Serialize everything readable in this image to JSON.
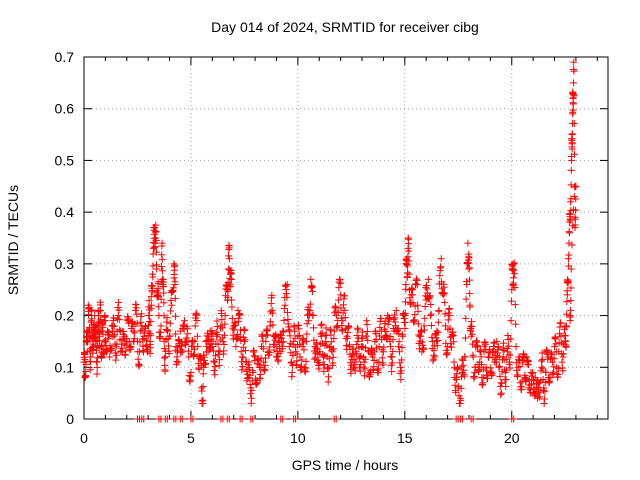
{
  "chart_data": {
    "type": "scatter",
    "title": "Day 014 of 2024, SRMTID for receiver cibg",
    "xlabel": "GPS time / hours",
    "ylabel": "SRMTID / TECUs",
    "xlim": [
      0,
      24.5
    ],
    "ylim": [
      0,
      0.7
    ],
    "xticks": [
      0,
      5,
      10,
      15,
      20
    ],
    "xtick_labels": [
      "0",
      "5",
      "10",
      "15",
      "20"
    ],
    "yticks": [
      0,
      0.1,
      0.2,
      0.3,
      0.4,
      0.5,
      0.6,
      0.7
    ],
    "ytick_labels": [
      "0",
      "0.1",
      "0.2",
      "0.3",
      "0.4",
      "0.5",
      "0.6",
      "0.7"
    ],
    "grid": true,
    "marker": "+",
    "series": [
      {
        "name": "SRMTID",
        "color": "#ff0000",
        "points": [
          [
            0.0,
            0.11
          ],
          [
            0.05,
            0.08
          ],
          [
            0.1,
            0.15
          ],
          [
            0.15,
            0.13
          ],
          [
            0.2,
            0.22
          ],
          [
            0.25,
            0.17
          ],
          [
            0.3,
            0.12
          ],
          [
            0.35,
            0.19
          ],
          [
            0.4,
            0.16
          ],
          [
            0.45,
            0.14
          ],
          [
            0.5,
            0.2
          ],
          [
            0.55,
            0.15
          ],
          [
            0.6,
            0.11
          ],
          [
            0.65,
            0.18
          ],
          [
            0.7,
            0.16
          ],
          [
            0.75,
            0.21
          ],
          [
            0.8,
            0.14
          ],
          [
            0.85,
            0.17
          ],
          [
            0.9,
            0.13
          ],
          [
            0.95,
            0.19
          ],
          [
            1.0,
            0.15
          ],
          [
            1.1,
            0.17
          ],
          [
            1.2,
            0.12
          ],
          [
            1.3,
            0.18
          ],
          [
            1.4,
            0.16
          ],
          [
            1.5,
            0.14
          ],
          [
            1.6,
            0.2
          ],
          [
            1.7,
            0.17
          ],
          [
            1.8,
            0.13
          ],
          [
            1.9,
            0.16
          ],
          [
            2.0,
            0.15
          ],
          [
            2.1,
            0.19
          ],
          [
            2.2,
            0.14
          ],
          [
            2.3,
            0.17
          ],
          [
            2.4,
            0.21
          ],
          [
            2.5,
            0.15
          ],
          [
            2.6,
            0.13
          ],
          [
            2.7,
            0.18
          ],
          [
            2.8,
            0.16
          ],
          [
            2.9,
            0.14
          ],
          [
            3.0,
            0.17
          ],
          [
            3.05,
            0.2
          ],
          [
            3.1,
            0.15
          ],
          [
            3.15,
            0.22
          ],
          [
            3.2,
            0.28
          ],
          [
            3.25,
            0.33
          ],
          [
            3.3,
            0.37
          ],
          [
            3.35,
            0.35
          ],
          [
            3.4,
            0.29
          ],
          [
            3.45,
            0.24
          ],
          [
            3.5,
            0.2
          ],
          [
            3.6,
            0.18
          ],
          [
            3.65,
            0.34
          ],
          [
            3.7,
            0.27
          ],
          [
            3.75,
            0.15
          ],
          [
            3.8,
            0.12
          ],
          [
            3.9,
            0.17
          ],
          [
            4.0,
            0.16
          ],
          [
            4.1,
            0.22
          ],
          [
            4.2,
            0.3
          ],
          [
            4.25,
            0.26
          ],
          [
            4.3,
            0.14
          ],
          [
            4.4,
            0.11
          ],
          [
            4.5,
            0.17
          ],
          [
            4.6,
            0.13
          ],
          [
            4.7,
            0.19
          ],
          [
            4.8,
            0.15
          ],
          [
            4.9,
            0.12
          ],
          [
            5.0,
            0.09
          ],
          [
            5.1,
            0.14
          ],
          [
            5.2,
            0.18
          ],
          [
            5.3,
            0.16
          ],
          [
            5.4,
            0.12
          ],
          [
            5.5,
            0.06
          ],
          [
            5.55,
            0.03
          ],
          [
            5.6,
            0.1
          ],
          [
            5.7,
            0.15
          ],
          [
            5.8,
            0.13
          ],
          [
            5.9,
            0.17
          ],
          [
            6.0,
            0.14
          ],
          [
            6.1,
            0.11
          ],
          [
            6.2,
            0.16
          ],
          [
            6.3,
            0.13
          ],
          [
            6.4,
            0.18
          ],
          [
            6.5,
            0.15
          ],
          [
            6.6,
            0.2
          ],
          [
            6.7,
            0.25
          ],
          [
            6.75,
            0.29
          ],
          [
            6.8,
            0.31
          ],
          [
            6.85,
            0.28
          ],
          [
            6.9,
            0.23
          ],
          [
            7.0,
            0.18
          ],
          [
            7.1,
            0.14
          ],
          [
            7.2,
            0.21
          ],
          [
            7.3,
            0.16
          ],
          [
            7.4,
            0.12
          ],
          [
            7.5,
            0.15
          ],
          [
            7.6,
            0.11
          ],
          [
            7.7,
            0.08
          ],
          [
            7.8,
            0.06
          ],
          [
            7.9,
            0.09
          ],
          [
            8.0,
            0.12
          ],
          [
            8.1,
            0.07
          ],
          [
            8.2,
            0.1
          ],
          [
            8.3,
            0.14
          ],
          [
            8.4,
            0.11
          ],
          [
            8.5,
            0.15
          ],
          [
            8.6,
            0.13
          ],
          [
            8.7,
            0.18
          ],
          [
            8.8,
            0.21
          ],
          [
            8.9,
            0.16
          ],
          [
            9.0,
            0.12
          ],
          [
            9.1,
            0.15
          ],
          [
            9.2,
            0.13
          ],
          [
            9.3,
            0.17
          ],
          [
            9.4,
            0.22
          ],
          [
            9.5,
            0.26
          ],
          [
            9.6,
            0.14
          ],
          [
            9.7,
            0.11
          ],
          [
            9.8,
            0.15
          ],
          [
            9.9,
            0.13
          ],
          [
            10.0,
            0.16
          ],
          [
            10.1,
            0.12
          ],
          [
            10.2,
            0.14
          ],
          [
            10.3,
            0.1
          ],
          [
            10.4,
            0.15
          ],
          [
            10.5,
            0.19
          ],
          [
            10.6,
            0.27
          ],
          [
            10.7,
            0.2
          ],
          [
            10.8,
            0.14
          ],
          [
            10.9,
            0.11
          ],
          [
            11.0,
            0.13
          ],
          [
            11.1,
            0.16
          ],
          [
            11.2,
            0.12
          ],
          [
            11.3,
            0.15
          ],
          [
            11.4,
            0.1
          ],
          [
            11.5,
            0.14
          ],
          [
            11.6,
            0.13
          ],
          [
            11.7,
            0.17
          ],
          [
            11.8,
            0.2
          ],
          [
            11.9,
            0.23
          ],
          [
            12.0,
            0.24
          ],
          [
            12.1,
            0.19
          ],
          [
            12.2,
            0.21
          ],
          [
            12.3,
            0.16
          ],
          [
            12.4,
            0.14
          ],
          [
            12.5,
            0.12
          ],
          [
            12.6,
            0.1
          ],
          [
            12.7,
            0.13
          ],
          [
            12.8,
            0.15
          ],
          [
            12.9,
            0.12
          ],
          [
            13.0,
            0.14
          ],
          [
            13.1,
            0.11
          ],
          [
            13.2,
            0.16
          ],
          [
            13.3,
            0.13
          ],
          [
            13.4,
            0.09
          ],
          [
            13.5,
            0.12
          ],
          [
            13.6,
            0.15
          ],
          [
            13.7,
            0.11
          ],
          [
            13.8,
            0.14
          ],
          [
            13.9,
            0.17
          ],
          [
            14.0,
            0.13
          ],
          [
            14.1,
            0.16
          ],
          [
            14.2,
            0.2
          ],
          [
            14.3,
            0.15
          ],
          [
            14.4,
            0.12
          ],
          [
            14.5,
            0.17
          ],
          [
            14.6,
            0.21
          ],
          [
            14.7,
            0.14
          ],
          [
            14.8,
            0.1
          ],
          [
            14.9,
            0.16
          ],
          [
            15.0,
            0.2
          ],
          [
            15.05,
            0.26
          ],
          [
            15.1,
            0.3
          ],
          [
            15.15,
            0.33
          ],
          [
            15.2,
            0.28
          ],
          [
            15.3,
            0.24
          ],
          [
            15.4,
            0.19
          ],
          [
            15.5,
            0.26
          ],
          [
            15.6,
            0.22
          ],
          [
            15.7,
            0.16
          ],
          [
            15.8,
            0.13
          ],
          [
            15.9,
            0.18
          ],
          [
            16.0,
            0.23
          ],
          [
            16.1,
            0.27
          ],
          [
            16.2,
            0.2
          ],
          [
            16.3,
            0.15
          ],
          [
            16.4,
            0.12
          ],
          [
            16.5,
            0.17
          ],
          [
            16.6,
            0.21
          ],
          [
            16.7,
            0.31
          ],
          [
            16.8,
            0.24
          ],
          [
            16.9,
            0.18
          ],
          [
            17.0,
            0.14
          ],
          [
            17.1,
            0.2
          ],
          [
            17.2,
            0.16
          ],
          [
            17.3,
            0.11
          ],
          [
            17.4,
            0.08
          ],
          [
            17.5,
            0.06
          ],
          [
            17.6,
            0.04
          ],
          [
            17.7,
            0.09
          ],
          [
            17.8,
            0.12
          ],
          [
            17.9,
            0.26
          ],
          [
            17.95,
            0.34
          ],
          [
            18.0,
            0.29
          ],
          [
            18.05,
            0.22
          ],
          [
            18.1,
            0.16
          ],
          [
            18.2,
            0.12
          ],
          [
            18.3,
            0.1
          ],
          [
            18.4,
            0.14
          ],
          [
            18.5,
            0.11
          ],
          [
            18.6,
            0.08
          ],
          [
            18.7,
            0.13
          ],
          [
            18.8,
            0.1
          ],
          [
            18.9,
            0.12
          ],
          [
            19.0,
            0.09
          ],
          [
            19.1,
            0.13
          ],
          [
            19.2,
            0.11
          ],
          [
            19.3,
            0.15
          ],
          [
            19.4,
            0.1
          ],
          [
            19.5,
            0.07
          ],
          [
            19.6,
            0.12
          ],
          [
            19.7,
            0.09
          ],
          [
            19.8,
            0.13
          ],
          [
            19.9,
            0.11
          ],
          [
            20.0,
            0.25
          ],
          [
            20.05,
            0.29
          ],
          [
            20.1,
            0.3
          ],
          [
            20.2,
            0.14
          ],
          [
            20.3,
            0.1
          ],
          [
            20.4,
            0.07
          ],
          [
            20.5,
            0.11
          ],
          [
            20.6,
            0.08
          ],
          [
            20.7,
            0.12
          ],
          [
            20.8,
            0.06
          ],
          [
            20.9,
            0.09
          ],
          [
            21.0,
            0.05
          ],
          [
            21.1,
            0.08
          ],
          [
            21.2,
            0.04
          ],
          [
            21.3,
            0.07
          ],
          [
            21.4,
            0.1
          ],
          [
            21.5,
            0.06
          ],
          [
            21.6,
            0.09
          ],
          [
            21.7,
            0.12
          ],
          [
            21.8,
            0.08
          ],
          [
            21.9,
            0.11
          ],
          [
            22.0,
            0.14
          ],
          [
            22.1,
            0.1
          ],
          [
            22.2,
            0.13
          ],
          [
            22.3,
            0.16
          ],
          [
            22.4,
            0.12
          ],
          [
            22.5,
            0.15
          ],
          [
            22.55,
            0.18
          ],
          [
            22.6,
            0.24
          ],
          [
            22.65,
            0.31
          ],
          [
            22.7,
            0.36
          ],
          [
            22.75,
            0.42
          ],
          [
            22.8,
            0.5
          ],
          [
            22.82,
            0.55
          ],
          [
            22.85,
            0.59
          ],
          [
            22.87,
            0.62
          ],
          [
            22.9,
            0.69
          ],
          [
            22.95,
            0.39
          ],
          [
            23.0,
            0.45
          ],
          [
            22.78,
            0.29
          ],
          [
            22.72,
            0.2
          ]
        ]
      }
    ],
    "zero_markers_x": [
      2.5,
      2.7,
      3.5,
      3.8,
      4.2,
      4.5,
      5.0,
      6.4,
      6.7,
      7.3,
      7.8,
      9.2,
      9.8,
      11.7,
      17.4,
      17.6,
      18.1,
      20.0
    ]
  }
}
